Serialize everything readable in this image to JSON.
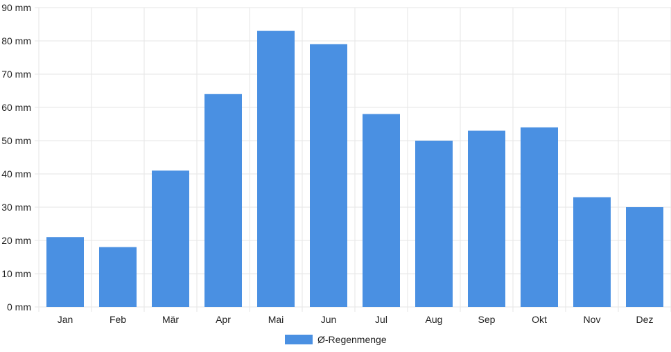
{
  "chart_data": {
    "type": "bar",
    "categories": [
      "Jan",
      "Feb",
      "Mär",
      "Apr",
      "Mai",
      "Jun",
      "Jul",
      "Aug",
      "Sep",
      "Okt",
      "Nov",
      "Dez"
    ],
    "series": [
      {
        "name": "Ø-Regenmenge",
        "values": [
          21,
          18,
          41,
          64,
          83,
          79,
          58,
          50,
          53,
          54,
          33,
          30
        ]
      }
    ],
    "ylim": [
      0,
      90
    ],
    "yticks": [
      "0 mm",
      "10 mm",
      "20 mm",
      "30 mm",
      "40 mm",
      "50 mm",
      "60 mm",
      "70 mm",
      "80 mm",
      "90 mm"
    ],
    "grid": true,
    "legend_position": "bottom",
    "colors": {
      "bar": "#4a90e2",
      "grid": "#e5e5e5"
    }
  }
}
